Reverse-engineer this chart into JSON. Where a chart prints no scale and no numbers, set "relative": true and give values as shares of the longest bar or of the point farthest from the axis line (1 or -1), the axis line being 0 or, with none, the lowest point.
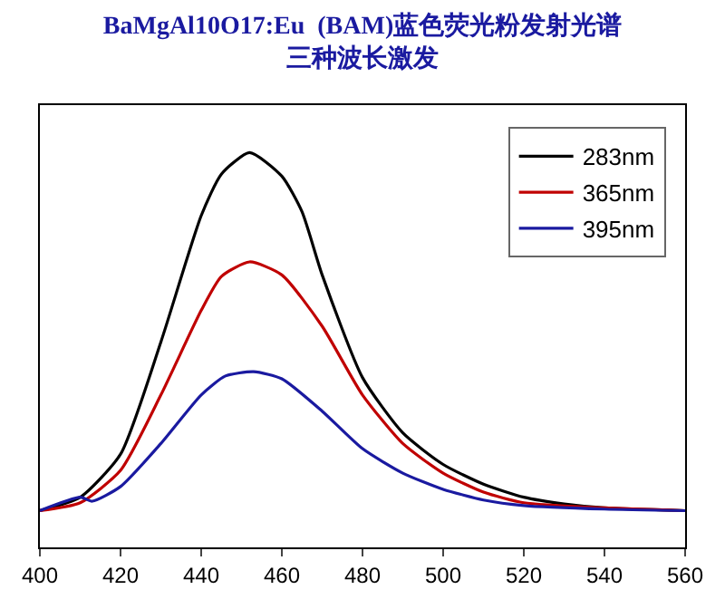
{
  "chart_data": {
    "type": "line",
    "title": "BaMgAl10O17:Eu  (BAM)蓝色荧光粉发射光谱",
    "subtitle": "三种波长激发",
    "relative": true,
    "xlim": [
      400,
      560
    ],
    "xticks": [
      400,
      420,
      440,
      460,
      480,
      500,
      520,
      540,
      560
    ],
    "legend": "top right",
    "marker": "none",
    "line_style": "solid",
    "series": [
      {
        "name": "283nm",
        "color": "#000000",
        "x": [
          400,
          410,
          420,
          430,
          440,
          445,
          452,
          460,
          465,
          470,
          480,
          490,
          500,
          510,
          520,
          530,
          540,
          560
        ],
        "values": [
          0.093,
          0.127,
          0.236,
          0.52,
          0.84,
          0.945,
          1.0,
          0.94,
          0.85,
          0.69,
          0.43,
          0.29,
          0.21,
          0.16,
          0.127,
          0.11,
          0.1,
          0.093
        ]
      },
      {
        "name": "365nm",
        "color": "#c00000",
        "x": [
          400,
          410,
          420,
          430,
          440,
          445,
          452,
          460,
          470,
          480,
          490,
          500,
          510,
          520,
          540,
          560
        ],
        "values": [
          0.093,
          0.113,
          0.195,
          0.386,
          0.6,
          0.686,
          0.723,
          0.69,
          0.56,
          0.386,
          0.263,
          0.188,
          0.14,
          0.113,
          0.1,
          0.093
        ]
      },
      {
        "name": "395nm",
        "color": "#1a1aa0",
        "x": [
          400,
          410,
          413,
          420,
          430,
          440,
          446,
          453,
          460,
          470,
          480,
          490,
          500,
          510,
          520,
          540,
          560
        ],
        "values": [
          0.093,
          0.127,
          0.117,
          0.154,
          0.263,
          0.386,
          0.434,
          0.445,
          0.427,
          0.345,
          0.25,
          0.188,
          0.147,
          0.12,
          0.106,
          0.097,
          0.093
        ]
      }
    ]
  }
}
